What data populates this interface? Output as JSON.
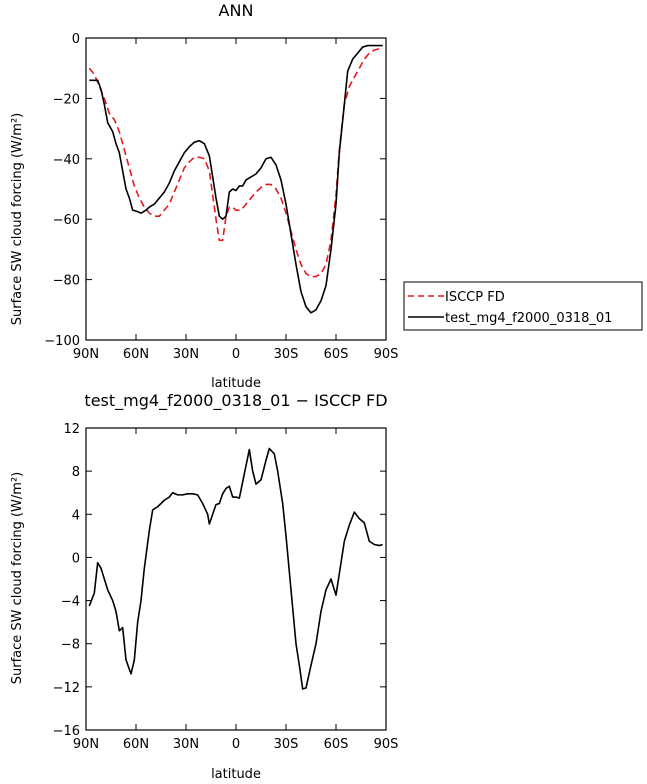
{
  "chart_data": [
    {
      "type": "line",
      "title": "ANN",
      "xlabel": "latitude",
      "ylabel": "Surface SW cloud forcing (W/m²)",
      "xlim": [
        90,
        -90
      ],
      "ylim": [
        -100,
        0
      ],
      "xticks": [
        {
          "value": 90,
          "label": "90N"
        },
        {
          "value": 60,
          "label": "60N"
        },
        {
          "value": 30,
          "label": "30N"
        },
        {
          "value": 0,
          "label": "0"
        },
        {
          "value": -30,
          "label": "30S"
        },
        {
          "value": -60,
          "label": "60S"
        },
        {
          "value": -90,
          "label": "90S"
        }
      ],
      "yticks": [
        {
          "value": 0,
          "label": "0"
        },
        {
          "value": -20,
          "label": "−20"
        },
        {
          "value": -40,
          "label": "−40"
        },
        {
          "value": -60,
          "label": "−60"
        },
        {
          "value": -80,
          "label": "−80"
        },
        {
          "value": -100,
          "label": "−100"
        }
      ],
      "grid": false,
      "legend": "right",
      "series": [
        {
          "name": "ISCCP FD",
          "color": "#e41a1c",
          "dash": true,
          "points": [
            [
              88,
              -10
            ],
            [
              85,
              -12
            ],
            [
              82,
              -16
            ],
            [
              79,
              -20
            ],
            [
              76,
              -25
            ],
            [
              73,
              -27
            ],
            [
              70,
              -31
            ],
            [
              67,
              -37
            ],
            [
              64,
              -43
            ],
            [
              61,
              -49
            ],
            [
              58,
              -53
            ],
            [
              55,
              -56
            ],
            [
              52,
              -58
            ],
            [
              49,
              -59
            ],
            [
              46,
              -59
            ],
            [
              43,
              -57
            ],
            [
              40,
              -55
            ],
            [
              37,
              -51
            ],
            [
              34,
              -47
            ],
            [
              31,
              -43
            ],
            [
              28,
              -41
            ],
            [
              25,
              -39.5
            ],
            [
              22,
              -39.5
            ],
            [
              19,
              -40
            ],
            [
              16,
              -44
            ],
            [
              14,
              -52
            ],
            [
              12,
              -60
            ],
            [
              10,
              -67
            ],
            [
              8,
              -67
            ],
            [
              6,
              -59
            ],
            [
              4,
              -56
            ],
            [
              2,
              -56
            ],
            [
              0,
              -57
            ],
            [
              -3,
              -57
            ],
            [
              -6,
              -55
            ],
            [
              -9,
              -53
            ],
            [
              -12,
              -51
            ],
            [
              -15,
              -49.5
            ],
            [
              -18,
              -48.5
            ],
            [
              -21,
              -48.5
            ],
            [
              -24,
              -50
            ],
            [
              -27,
              -53
            ],
            [
              -30,
              -58
            ],
            [
              -33,
              -64
            ],
            [
              -36,
              -70
            ],
            [
              -39,
              -75
            ],
            [
              -42,
              -78
            ],
            [
              -45,
              -79
            ],
            [
              -48,
              -79
            ],
            [
              -51,
              -78
            ],
            [
              -54,
              -75
            ],
            [
              -57,
              -67
            ],
            [
              -60,
              -52
            ],
            [
              -62,
              -37
            ],
            [
              -65,
              -22
            ],
            [
              -68,
              -16
            ],
            [
              -71,
              -13
            ],
            [
              -74,
              -10
            ],
            [
              -77,
              -7
            ],
            [
              -80,
              -5
            ],
            [
              -83,
              -4
            ],
            [
              -86,
              -3.5
            ],
            [
              -88,
              -3
            ]
          ]
        },
        {
          "name": "test_mg4_f2000_0318_01",
          "color": "#000000",
          "dash": false,
          "points": [
            [
              88,
              -14
            ],
            [
              85,
              -14
            ],
            [
              83,
              -14
            ],
            [
              81,
              -17
            ],
            [
              79,
              -22
            ],
            [
              77,
              -28
            ],
            [
              74,
              -31
            ],
            [
              72,
              -35
            ],
            [
              70,
              -38
            ],
            [
              68,
              -44
            ],
            [
              66,
              -50
            ],
            [
              64,
              -53
            ],
            [
              62,
              -57
            ],
            [
              59,
              -57.5
            ],
            [
              57,
              -58
            ],
            [
              54,
              -57
            ],
            [
              52,
              -56
            ],
            [
              49,
              -55
            ],
            [
              46,
              -53
            ],
            [
              43,
              -51
            ],
            [
              40,
              -48
            ],
            [
              37,
              -44
            ],
            [
              34,
              -41
            ],
            [
              31,
              -38
            ],
            [
              28,
              -36
            ],
            [
              25,
              -34.5
            ],
            [
              22,
              -34
            ],
            [
              19,
              -35
            ],
            [
              16,
              -39
            ],
            [
              14,
              -46
            ],
            [
              12,
              -53
            ],
            [
              10,
              -59
            ],
            [
              8,
              -60
            ],
            [
              6,
              -59
            ],
            [
              4,
              -51
            ],
            [
              2,
              -50
            ],
            [
              0,
              -50.5
            ],
            [
              -2,
              -49
            ],
            [
              -4,
              -49
            ],
            [
              -6,
              -47
            ],
            [
              -9,
              -46
            ],
            [
              -12,
              -45
            ],
            [
              -15,
              -43
            ],
            [
              -18,
              -40
            ],
            [
              -21,
              -39.5
            ],
            [
              -24,
              -42
            ],
            [
              -27,
              -47
            ],
            [
              -30,
              -55
            ],
            [
              -33,
              -65
            ],
            [
              -36,
              -75
            ],
            [
              -39,
              -84
            ],
            [
              -42,
              -89
            ],
            [
              -45,
              -91
            ],
            [
              -48,
              -90
            ],
            [
              -51,
              -87
            ],
            [
              -54,
              -82
            ],
            [
              -57,
              -70
            ],
            [
              -60,
              -55
            ],
            [
              -62,
              -38
            ],
            [
              -65,
              -22
            ],
            [
              -67,
              -11
            ],
            [
              -70,
              -7
            ],
            [
              -73,
              -5
            ],
            [
              -76,
              -3
            ],
            [
              -79,
              -2.5
            ],
            [
              -82,
              -2.5
            ],
            [
              -85,
              -2.5
            ],
            [
              -88,
              -2.5
            ]
          ]
        }
      ]
    },
    {
      "type": "line",
      "title": "test_mg4_f2000_0318_01 − ISCCP FD",
      "xlabel": "latitude",
      "ylabel": "Surface SW cloud forcing (W/m²)",
      "xlim": [
        90,
        -90
      ],
      "ylim": [
        -16,
        12
      ],
      "xticks": [
        {
          "value": 90,
          "label": "90N"
        },
        {
          "value": 60,
          "label": "60N"
        },
        {
          "value": 30,
          "label": "30N"
        },
        {
          "value": 0,
          "label": "0"
        },
        {
          "value": -30,
          "label": "30S"
        },
        {
          "value": -60,
          "label": "60S"
        },
        {
          "value": -90,
          "label": "90S"
        }
      ],
      "yticks": [
        {
          "value": 12,
          "label": "12"
        },
        {
          "value": 8,
          "label": "8"
        },
        {
          "value": 4,
          "label": "4"
        },
        {
          "value": 0,
          "label": "0"
        },
        {
          "value": -4,
          "label": "−4"
        },
        {
          "value": -8,
          "label": "−8"
        },
        {
          "value": -12,
          "label": "−12"
        },
        {
          "value": -16,
          "label": "−16"
        }
      ],
      "grid": false,
      "series": [
        {
          "color": "#000000",
          "dash": false,
          "points": [
            [
              88,
              -4.5
            ],
            [
              85,
              -3.3
            ],
            [
              83,
              -0.5
            ],
            [
              81,
              -1
            ],
            [
              79,
              -2
            ],
            [
              77,
              -3
            ],
            [
              74,
              -4
            ],
            [
              72,
              -5
            ],
            [
              70,
              -6.8
            ],
            [
              68,
              -6.5
            ],
            [
              66,
              -9.5
            ],
            [
              63,
              -10.8
            ],
            [
              61,
              -9.5
            ],
            [
              59,
              -6
            ],
            [
              57,
              -4
            ],
            [
              55,
              -1
            ],
            [
              52,
              2.5
            ],
            [
              50,
              4.4
            ],
            [
              47,
              4.7
            ],
            [
              45,
              5
            ],
            [
              43,
              5.3
            ],
            [
              40,
              5.6
            ],
            [
              38,
              6
            ],
            [
              35,
              5.8
            ],
            [
              32,
              5.8
            ],
            [
              29,
              5.9
            ],
            [
              26,
              5.9
            ],
            [
              23,
              5.8
            ],
            [
              20,
              5
            ],
            [
              17,
              4
            ],
            [
              16,
              3.1
            ],
            [
              14,
              4
            ],
            [
              12,
              4.9
            ],
            [
              10,
              5
            ],
            [
              8,
              5.9
            ],
            [
              6,
              6.4
            ],
            [
              4,
              6.6
            ],
            [
              2,
              5.6
            ],
            [
              0,
              5.6
            ],
            [
              -2,
              5.5
            ],
            [
              -4,
              7
            ],
            [
              -6,
              8.5
            ],
            [
              -8,
              10
            ],
            [
              -10,
              8
            ],
            [
              -12,
              6.8
            ],
            [
              -15,
              7.2
            ],
            [
              -18,
              9
            ],
            [
              -20,
              10.1
            ],
            [
              -23,
              9.6
            ],
            [
              -25,
              8
            ],
            [
              -28,
              5
            ],
            [
              -30,
              2
            ],
            [
              -33,
              -3
            ],
            [
              -36,
              -8
            ],
            [
              -38,
              -10
            ],
            [
              -40,
              -12.2
            ],
            [
              -42,
              -12.1
            ],
            [
              -45,
              -10
            ],
            [
              -48,
              -8
            ],
            [
              -51,
              -5
            ],
            [
              -54,
              -3
            ],
            [
              -57,
              -2
            ],
            [
              -60,
              -3.5
            ],
            [
              -62,
              -1.5
            ],
            [
              -65,
              1.5
            ],
            [
              -68,
              3
            ],
            [
              -71,
              4.2
            ],
            [
              -74,
              3.6
            ],
            [
              -77,
              3.2
            ],
            [
              -80,
              1.5
            ],
            [
              -83,
              1.2
            ],
            [
              -86,
              1.1
            ],
            [
              -88,
              1.2
            ]
          ]
        }
      ]
    }
  ]
}
